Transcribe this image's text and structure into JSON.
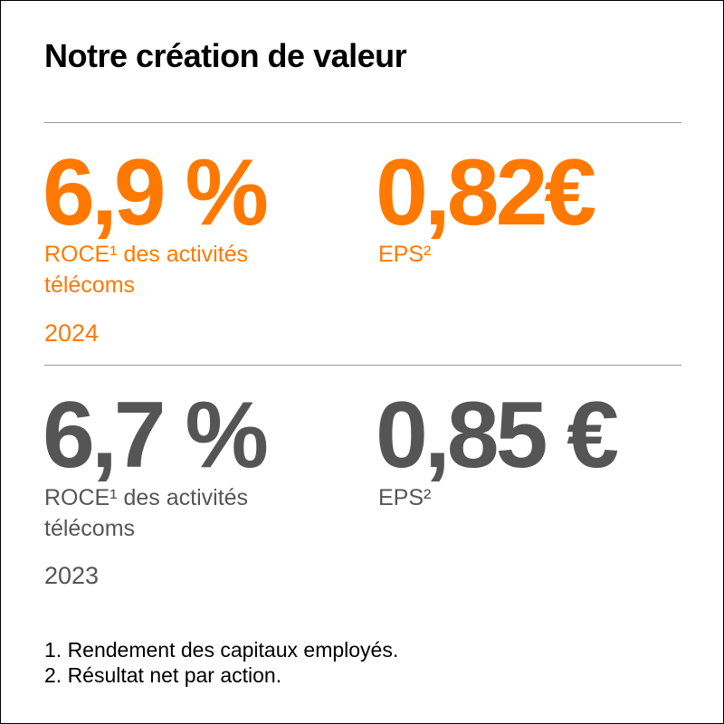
{
  "title": "Notre création de valeur",
  "colors": {
    "accent": "#ff7900",
    "muted": "#555555"
  },
  "current": {
    "roce_value": "6,9 %",
    "roce_label": "ROCE¹ des activités télécoms",
    "eps_value": "0,82€",
    "eps_label": "EPS²",
    "year": "2024"
  },
  "previous": {
    "roce_value": "6,7 %",
    "roce_label": "ROCE¹ des activités télécoms",
    "eps_value": "0,85 €",
    "eps_label": "EPS²",
    "year": "2023"
  },
  "footnotes": [
    "1. Rendement des capitaux employés.",
    "2. Résultat net par action."
  ]
}
